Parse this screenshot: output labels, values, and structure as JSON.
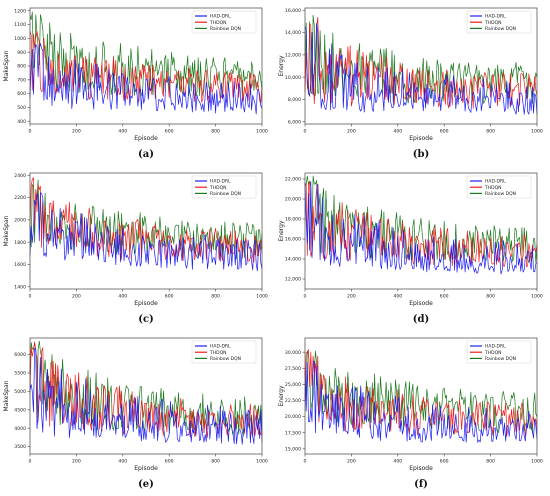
{
  "figure": {
    "colors": {
      "had_drl": "#1f1ff5",
      "thdqn": "#f21c1c",
      "rainbow": "#1d7a1d",
      "axis": "#444444"
    }
  },
  "chart_data": [
    {
      "type": "line",
      "caption": "(a)",
      "xlabel": "Episode",
      "ylabel": "MakeSpan",
      "xlim": [
        0,
        1000
      ],
      "ylim": [
        380,
        1220
      ],
      "xticks": [
        "0",
        "200",
        "400",
        "600",
        "800",
        "1000"
      ],
      "yticks": [
        400,
        500,
        600,
        700,
        800,
        900,
        1000,
        1100,
        1200
      ],
      "yticklabels": [
        "400",
        "500",
        "600",
        "700",
        "800",
        "900",
        "1000",
        "1100",
        "1200"
      ],
      "legend": "top-right",
      "grid": false,
      "series": [
        {
          "name": "HAD-DRL",
          "color": "#1f1ff5",
          "start": 720,
          "end": 560,
          "band": [
            [
              0,
              480
            ],
            [
              200,
              470
            ],
            [
              400,
              460
            ],
            [
              600,
              455
            ],
            [
              800,
              445
            ],
            [
              1000,
              440
            ]
          ],
          "peak": 980,
          "seed": 3,
          "amp": 1.0
        },
        {
          "name": "THDQN",
          "color": "#f21c1c",
          "start": 880,
          "end": 640,
          "band": [
            [
              0,
              560
            ],
            [
              200,
              540
            ],
            [
              400,
              530
            ],
            [
              600,
              520
            ],
            [
              800,
              520
            ],
            [
              1000,
              520
            ]
          ],
          "peak": 1060,
          "seed": 11,
          "amp": 0.9
        },
        {
          "name": "Rainbow DQN",
          "color": "#1d7a1d",
          "start": 960,
          "end": 700,
          "band": [
            [
              0,
              600
            ],
            [
              200,
              580
            ],
            [
              400,
              560
            ],
            [
              600,
              560
            ],
            [
              800,
              550
            ],
            [
              1000,
              550
            ]
          ],
          "peak": 1200,
          "seed": 21,
          "amp": 1.0
        }
      ]
    },
    {
      "type": "line",
      "caption": "(b)",
      "xlabel": "Episode",
      "ylabel": "Energy",
      "xlim": [
        0,
        1000
      ],
      "ylim": [
        5800,
        16200
      ],
      "xticks": [
        "0",
        "200",
        "400",
        "600",
        "800",
        "1000"
      ],
      "yticks": [
        6000,
        8000,
        10000,
        12000,
        14000,
        16000
      ],
      "yticklabels": [
        "6,000",
        "8,000",
        "10,000",
        "12,000",
        "14,000",
        "16,000"
      ],
      "legend": "top-right",
      "grid": false,
      "series": [
        {
          "name": "HAD-DRL",
          "color": "#1f1ff5",
          "start": 9600,
          "end": 7600,
          "band": [
            [
              0,
              6800
            ],
            [
              400,
              6600
            ],
            [
              1000,
              6500
            ]
          ],
          "peak": 15600,
          "seed": 5,
          "amp": 0.9
        },
        {
          "name": "THDQN",
          "color": "#f21c1c",
          "start": 10800,
          "end": 8600,
          "band": [
            [
              0,
              7200
            ],
            [
              400,
              7000
            ],
            [
              1000,
              7000
            ]
          ],
          "peak": 15800,
          "seed": 13,
          "amp": 0.8
        },
        {
          "name": "Rainbow DQN",
          "color": "#1d7a1d",
          "start": 11200,
          "end": 9600,
          "band": [
            [
              0,
              7600
            ],
            [
              400,
              7400
            ],
            [
              1000,
              7200
            ]
          ],
          "peak": 16000,
          "seed": 23,
          "amp": 0.9
        }
      ]
    },
    {
      "type": "line",
      "caption": "(c)",
      "xlabel": "Episode",
      "ylabel": "MakeSpan",
      "xlim": [
        0,
        1000
      ],
      "ylim": [
        1380,
        2420
      ],
      "xticks": [
        "0",
        "200",
        "400",
        "600",
        "800",
        "1000"
      ],
      "yticks": [
        1400,
        1600,
        1800,
        2000,
        2200,
        2400
      ],
      "yticklabels": [
        "1400",
        "1600",
        "1800",
        "2000",
        "2200",
        "2400"
      ],
      "legend": "top-right",
      "grid": false,
      "series": [
        {
          "name": "HAD-DRL",
          "color": "#1f1ff5",
          "start": 1900,
          "end": 1680,
          "band": [
            [
              0,
              1620
            ],
            [
              400,
              1560
            ],
            [
              1000,
              1500
            ]
          ],
          "peak": 2300,
          "seed": 7,
          "amp": 0.9
        },
        {
          "name": "THDQN",
          "color": "#f21c1c",
          "start": 2050,
          "end": 1760,
          "band": [
            [
              0,
              1700
            ],
            [
              400,
              1620
            ],
            [
              1000,
              1600
            ]
          ],
          "peak": 2380,
          "seed": 17,
          "amp": 0.8
        },
        {
          "name": "Rainbow DQN",
          "color": "#1d7a1d",
          "start": 2100,
          "end": 1820,
          "band": [
            [
              0,
              1720
            ],
            [
              400,
              1650
            ],
            [
              1000,
              1620
            ]
          ],
          "peak": 2380,
          "seed": 27,
          "amp": 0.9
        }
      ]
    },
    {
      "type": "line",
      "caption": "(d)",
      "xlabel": "Episode",
      "ylabel": "Energy",
      "xlim": [
        0,
        1000
      ],
      "ylim": [
        11000,
        22600
      ],
      "xticks": [
        "0",
        "200",
        "400",
        "600",
        "800",
        "1000"
      ],
      "yticks": [
        12000,
        14000,
        16000,
        18000,
        20000,
        22000
      ],
      "yticklabels": [
        "12,000",
        "14,000",
        "16,000",
        "18,000",
        "20,000",
        "22,000"
      ],
      "legend": "top-right",
      "grid": false,
      "series": [
        {
          "name": "HAD-DRL",
          "color": "#1f1ff5",
          "start": 16500,
          "end": 13400,
          "band": [
            [
              0,
              13000
            ],
            [
              400,
              12600
            ],
            [
              1000,
              12200
            ]
          ],
          "peak": 22000,
          "seed": 9,
          "amp": 0.9
        },
        {
          "name": "THDQN",
          "color": "#f21c1c",
          "start": 18000,
          "end": 14600,
          "band": [
            [
              0,
              13800
            ],
            [
              400,
              13200
            ],
            [
              1000,
              13000
            ]
          ],
          "peak": 22300,
          "seed": 19,
          "amp": 0.8
        },
        {
          "name": "Rainbow DQN",
          "color": "#1d7a1d",
          "start": 18500,
          "end": 15200,
          "band": [
            [
              0,
              14200
            ],
            [
              400,
              13600
            ],
            [
              1000,
              13400
            ]
          ],
          "peak": 22400,
          "seed": 29,
          "amp": 0.9
        }
      ]
    },
    {
      "type": "line",
      "caption": "(e)",
      "xlabel": "Episode",
      "ylabel": "MakeSpan",
      "xlim": [
        0,
        1000
      ],
      "ylim": [
        3300,
        6450
      ],
      "xticks": [
        "0",
        "200",
        "400",
        "600",
        "800",
        "1000"
      ],
      "yticks": [
        3500,
        4000,
        4500,
        5000,
        5500,
        6000
      ],
      "yticklabels": [
        "3500",
        "4000",
        "4500",
        "5000",
        "5500",
        "6000"
      ],
      "legend": "top-right",
      "grid": false,
      "series": [
        {
          "name": "HAD-DRL",
          "color": "#1f1ff5",
          "start": 4800,
          "end": 3900,
          "band": [
            [
              0,
              3700
            ],
            [
              400,
              3600
            ],
            [
              1000,
              3500
            ]
          ],
          "peak": 6300,
          "seed": 31,
          "amp": 0.9
        },
        {
          "name": "THDQN",
          "color": "#f21c1c",
          "start": 5200,
          "end": 4150,
          "band": [
            [
              0,
              3900
            ],
            [
              400,
              3750
            ],
            [
              1000,
              3650
            ]
          ],
          "peak": 6350,
          "seed": 37,
          "amp": 0.8
        },
        {
          "name": "Rainbow DQN",
          "color": "#1d7a1d",
          "start": 5300,
          "end": 4300,
          "band": [
            [
              0,
              4000
            ],
            [
              400,
              3800
            ],
            [
              1000,
              3700
            ]
          ],
          "peak": 6380,
          "seed": 41,
          "amp": 0.9
        }
      ]
    },
    {
      "type": "line",
      "caption": "(f)",
      "xlabel": "Episode",
      "ylabel": "Energy",
      "xlim": [
        0,
        1000
      ],
      "ylim": [
        14200,
        32200
      ],
      "xticks": [
        "0",
        "200",
        "400",
        "600",
        "800",
        "1000"
      ],
      "yticks": [
        15000,
        17500,
        20000,
        22500,
        25000,
        27500,
        30000
      ],
      "yticklabels": [
        "15,000",
        "17,500",
        "20,000",
        "22,500",
        "25,000",
        "27,500",
        "30,000"
      ],
      "legend": "top-right",
      "grid": false,
      "series": [
        {
          "name": "HAD-DRL",
          "color": "#1f1ff5",
          "start": 21500,
          "end": 17800,
          "band": [
            [
              0,
              16500
            ],
            [
              400,
              15800
            ],
            [
              1000,
              15500
            ]
          ],
          "peak": 29500,
          "seed": 43,
          "amp": 0.9
        },
        {
          "name": "THDQN",
          "color": "#f21c1c",
          "start": 23500,
          "end": 19500,
          "band": [
            [
              0,
              17500
            ],
            [
              400,
              16800
            ],
            [
              1000,
              16500
            ]
          ],
          "peak": 30500,
          "seed": 47,
          "amp": 0.8
        },
        {
          "name": "Rainbow DQN",
          "color": "#1d7a1d",
          "start": 24500,
          "end": 21000,
          "band": [
            [
              0,
              18000
            ],
            [
              400,
              17500
            ],
            [
              1000,
              17000
            ]
          ],
          "peak": 31500,
          "seed": 53,
          "amp": 0.9
        }
      ]
    }
  ]
}
